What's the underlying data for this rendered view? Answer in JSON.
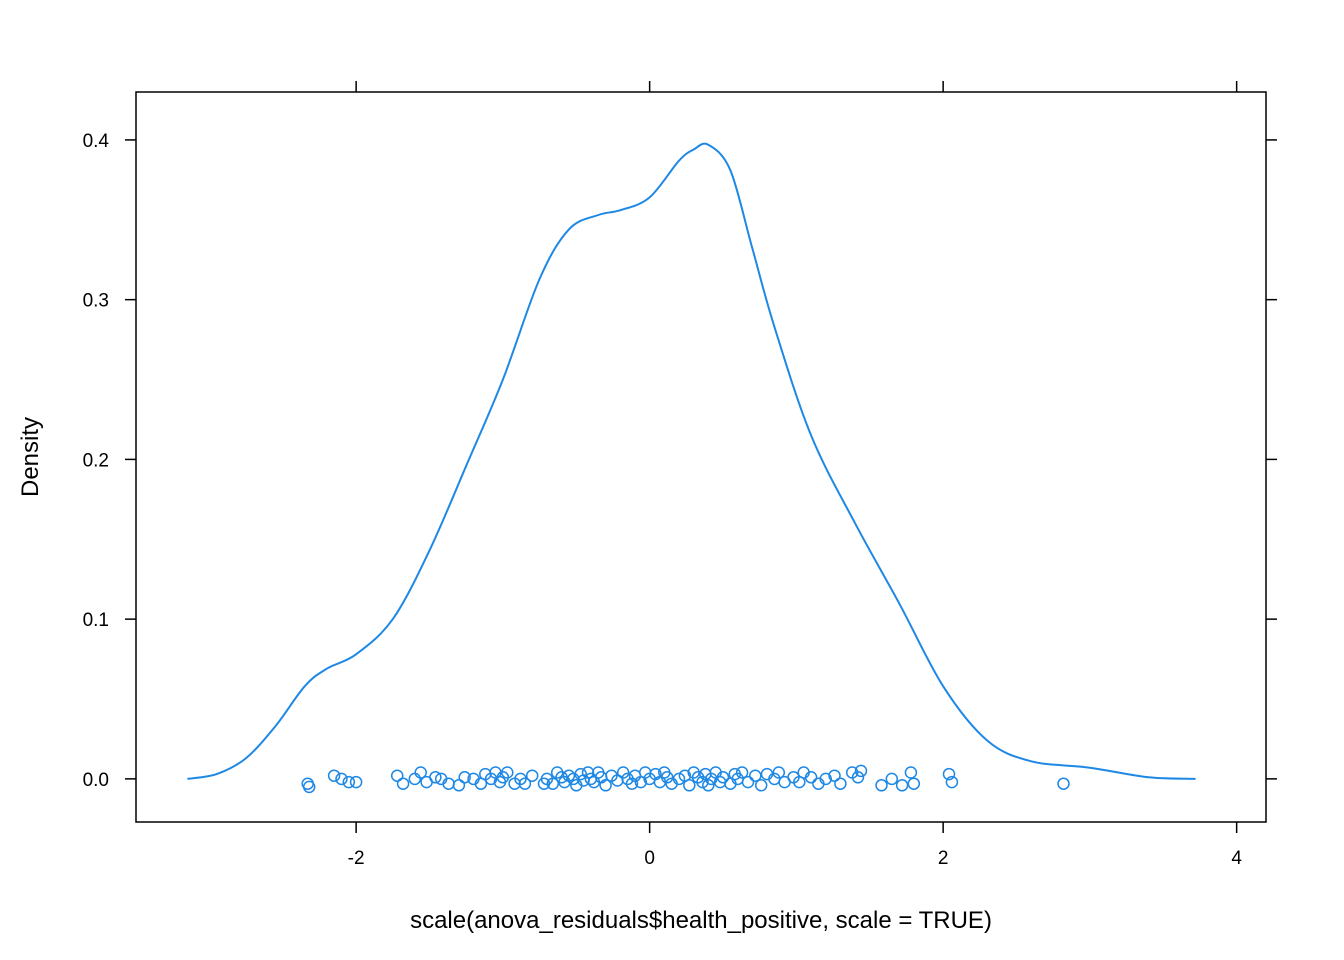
{
  "chart_data": {
    "type": "line",
    "subtype": "density with jittered rug points",
    "title": "",
    "xlabel": "scale(anova_residuals$health_positive, scale = TRUE)",
    "ylabel": "Density",
    "xlim": [
      -3.5,
      4.2
    ],
    "ylim": [
      -0.027,
      0.43
    ],
    "x_ticks": [
      -2,
      0,
      2,
      4
    ],
    "x_tick_labels": [
      "-2",
      "0",
      "2",
      "4"
    ],
    "y_ticks": [
      0.0,
      0.1,
      0.2,
      0.3,
      0.4
    ],
    "y_tick_labels": [
      "0.0",
      "0.1",
      "0.2",
      "0.3",
      "0.4"
    ],
    "grid": false,
    "legend": "none",
    "line_color": "#1E88E5",
    "density_curve": {
      "x": [
        -3.15,
        -2.95,
        -2.75,
        -2.55,
        -2.35,
        -2.2,
        -2.0,
        -1.75,
        -1.5,
        -1.25,
        -1.0,
        -0.75,
        -0.55,
        -0.35,
        -0.2,
        0.0,
        0.2,
        0.3,
        0.4,
        0.55,
        0.7,
        0.85,
        1.1,
        1.4,
        1.7,
        2.0,
        2.3,
        2.6,
        3.0,
        3.4,
        3.72
      ],
      "y": [
        0.0,
        0.003,
        0.013,
        0.033,
        0.058,
        0.069,
        0.078,
        0.1,
        0.143,
        0.196,
        0.25,
        0.313,
        0.344,
        0.353,
        0.356,
        0.364,
        0.387,
        0.394,
        0.397,
        0.381,
        0.332,
        0.283,
        0.215,
        0.16,
        0.11,
        0.058,
        0.024,
        0.011,
        0.007,
        0.001,
        0.0
      ]
    },
    "rug_points": {
      "x": [
        -2.33,
        -2.32,
        -2.15,
        -2.1,
        -2.05,
        -2.0,
        -1.72,
        -1.68,
        -1.6,
        -1.56,
        -1.52,
        -1.46,
        -1.42,
        -1.37,
        -1.3,
        -1.26,
        -1.2,
        -1.15,
        -1.12,
        -1.08,
        -1.05,
        -1.02,
        -1.0,
        -0.97,
        -0.92,
        -0.88,
        -0.85,
        -0.8,
        -0.72,
        -0.7,
        -0.66,
        -0.63,
        -0.6,
        -0.58,
        -0.55,
        -0.52,
        -0.5,
        -0.47,
        -0.45,
        -0.42,
        -0.4,
        -0.38,
        -0.35,
        -0.33,
        -0.3,
        -0.26,
        -0.22,
        -0.18,
        -0.15,
        -0.12,
        -0.1,
        -0.06,
        -0.03,
        0.0,
        0.04,
        0.07,
        0.1,
        0.12,
        0.15,
        0.2,
        0.24,
        0.27,
        0.3,
        0.33,
        0.36,
        0.38,
        0.4,
        0.42,
        0.45,
        0.48,
        0.5,
        0.55,
        0.58,
        0.6,
        0.63,
        0.67,
        0.72,
        0.76,
        0.8,
        0.85,
        0.88,
        0.92,
        0.98,
        1.02,
        1.05,
        1.1,
        1.15,
        1.2,
        1.26,
        1.3,
        1.38,
        1.42,
        1.44,
        1.58,
        1.65,
        1.72,
        1.78,
        1.8,
        2.04,
        2.06,
        2.82
      ],
      "y": [
        -0.003,
        -0.005,
        0.002,
        0.0,
        -0.002,
        -0.002,
        0.002,
        -0.003,
        0.0,
        0.004,
        -0.002,
        0.001,
        0.0,
        -0.003,
        -0.004,
        0.001,
        0.0,
        -0.003,
        0.003,
        0.0,
        0.004,
        -0.002,
        0.001,
        0.004,
        -0.003,
        0.0,
        -0.003,
        0.002,
        -0.003,
        0.0,
        -0.003,
        0.004,
        0.001,
        -0.002,
        0.002,
        0.0,
        -0.004,
        0.003,
        -0.001,
        0.004,
        0.0,
        -0.002,
        0.004,
        0.001,
        -0.004,
        0.002,
        -0.001,
        0.004,
        0.0,
        -0.003,
        0.002,
        -0.002,
        0.004,
        0.0,
        0.003,
        -0.002,
        0.004,
        0.001,
        -0.003,
        0.0,
        0.002,
        -0.004,
        0.004,
        0.001,
        -0.002,
        0.003,
        -0.004,
        0.0,
        0.004,
        -0.002,
        0.001,
        -0.003,
        0.003,
        0.0,
        0.004,
        -0.002,
        0.002,
        -0.004,
        0.003,
        0.0,
        0.004,
        -0.002,
        0.001,
        -0.002,
        0.004,
        0.001,
        -0.003,
        0.0,
        0.002,
        -0.003,
        0.004,
        0.001,
        0.005,
        -0.004,
        0.0,
        -0.004,
        0.004,
        -0.003,
        0.003,
        -0.002,
        -0.003
      ]
    }
  }
}
